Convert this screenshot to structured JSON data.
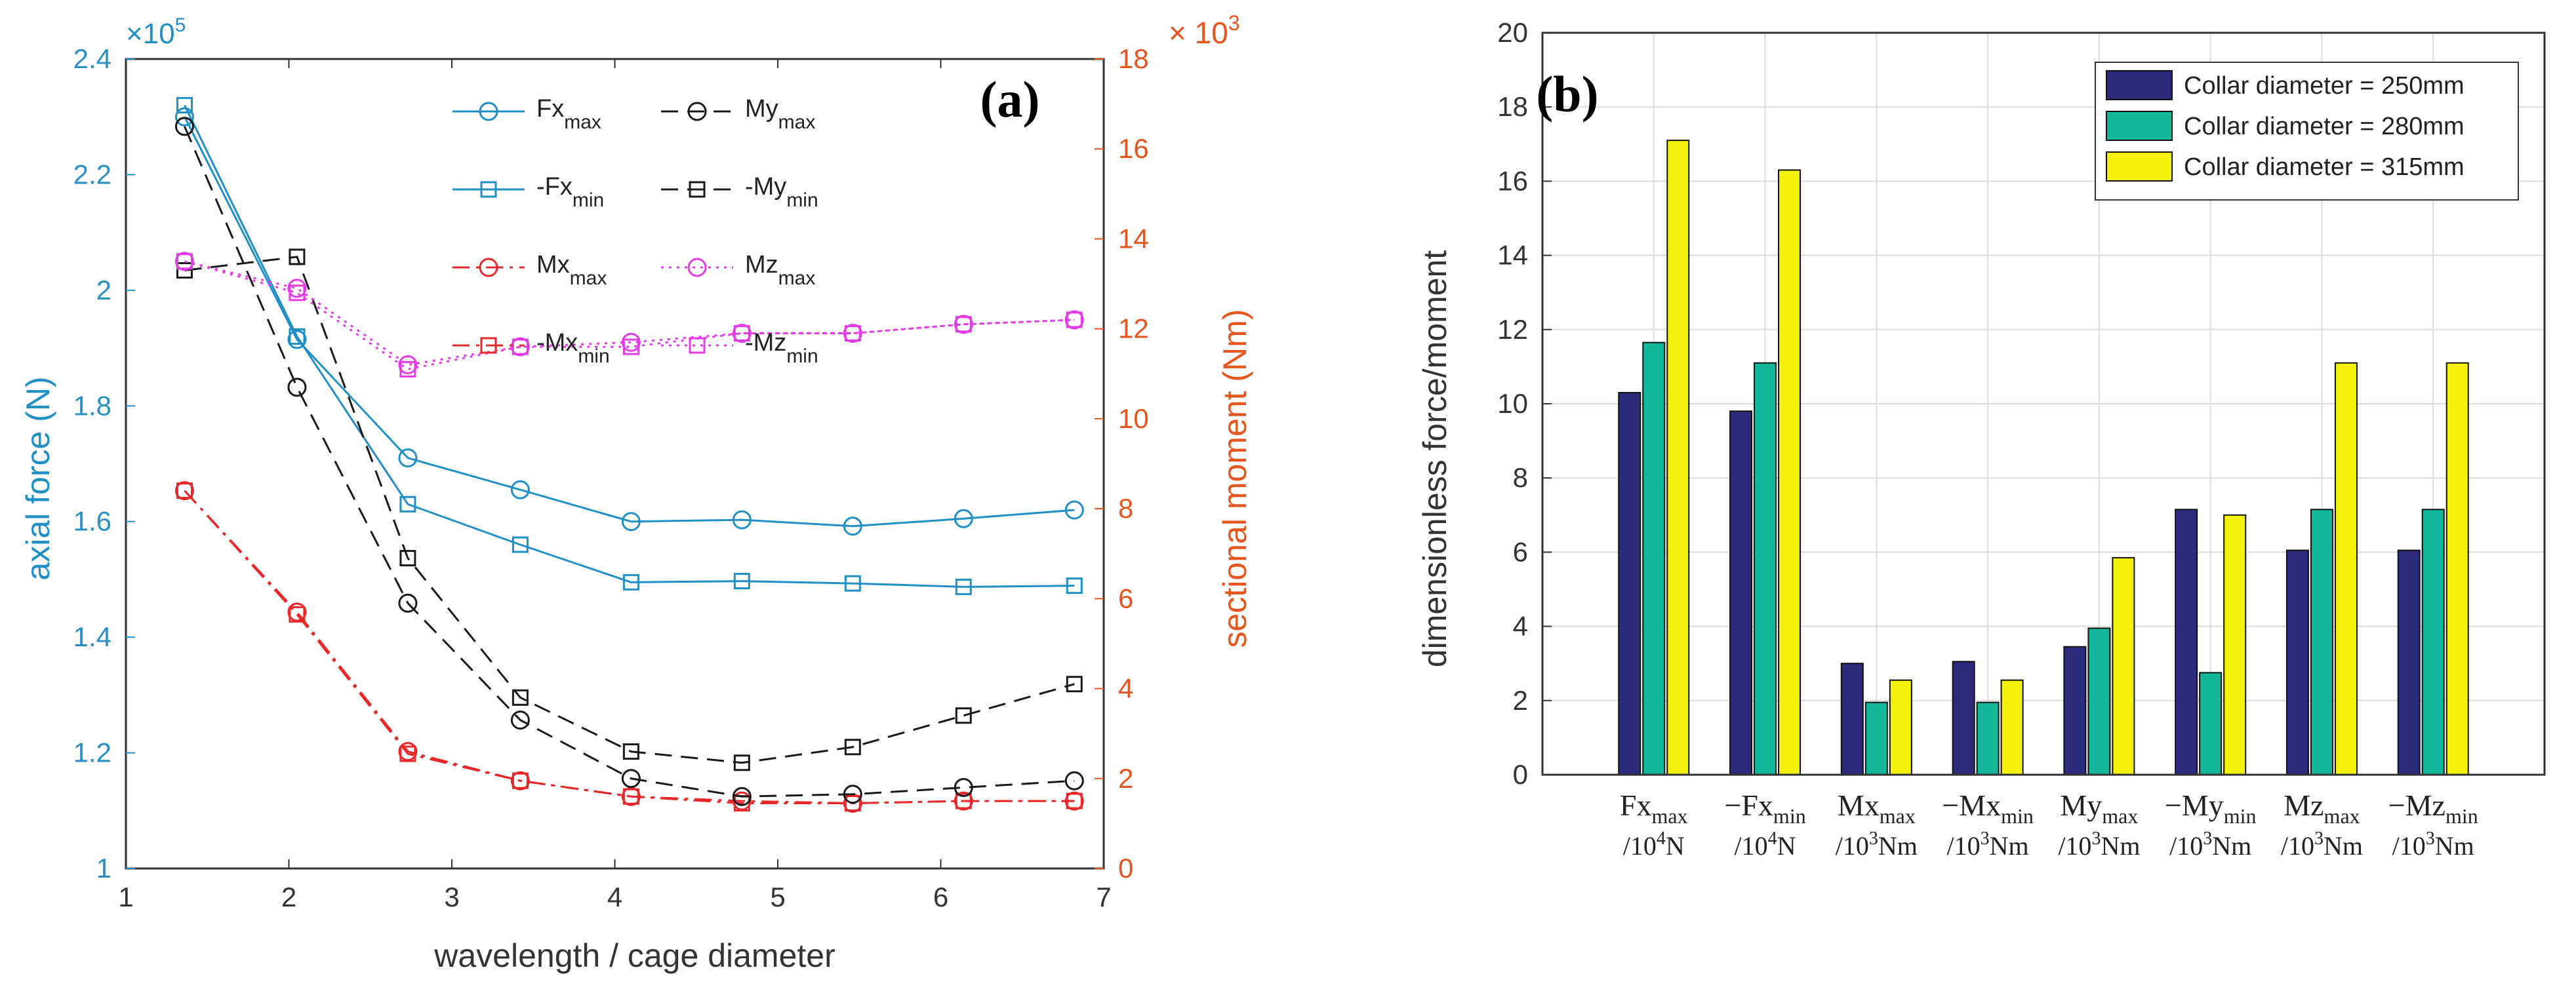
{
  "chart_data": [
    {
      "id": "a",
      "type": "line",
      "panel_label": "(a)",
      "xlabel": "wavelength / cage diameter",
      "ylabel_left": "axial force (N)",
      "ylabel_right": "sectional moment (Nm)",
      "left_multiplier_base": "×10",
      "left_multiplier_exp": "5",
      "right_multiplier_base": "× 10",
      "right_multiplier_exp": "3",
      "xlim": [
        1,
        7
      ],
      "ylim_left": [
        1,
        2.4
      ],
      "ylim_right": [
        0,
        18
      ],
      "x_ticks": [
        1,
        2,
        3,
        4,
        5,
        6,
        7
      ],
      "y_left_ticks": [
        1,
        1.2,
        1.4,
        1.6,
        1.8,
        2,
        2.2,
        2.4
      ],
      "y_right_ticks": [
        0,
        2,
        4,
        6,
        8,
        10,
        12,
        14,
        16,
        18
      ],
      "x": [
        1.36,
        2.05,
        2.73,
        3.42,
        4.1,
        4.78,
        5.46,
        6.14,
        6.82
      ],
      "colors": {
        "force": "#1f8fc6",
        "moment_x": "#e8272b",
        "moment_y": "#1a1a1a",
        "moment_z": "#e33be6",
        "right_axis": "#e8541e"
      },
      "series": [
        {
          "name": "Fx",
          "sub": "max",
          "axis": "left",
          "color": "#1f8fc6",
          "marker": "circle",
          "dash": "solid",
          "values": [
            2.3,
            1.915,
            1.71,
            1.655,
            1.6,
            1.603,
            1.592,
            1.605,
            1.62
          ]
        },
        {
          "name": "-Fx",
          "sub": "min",
          "axis": "left",
          "color": "#1f8fc6",
          "marker": "square",
          "dash": "solid",
          "values": [
            2.32,
            1.92,
            1.63,
            1.56,
            1.495,
            1.497,
            1.493,
            1.487,
            1.489
          ]
        },
        {
          "name": "Mx",
          "sub": "max",
          "axis": "right",
          "color": "#e8272b",
          "marker": "circle",
          "dash": "dashdot",
          "values": [
            8.4,
            5.7,
            2.6,
            1.95,
            1.6,
            1.5,
            1.45,
            1.5,
            1.5
          ]
        },
        {
          "name": "-Mx",
          "sub": "min",
          "axis": "right",
          "color": "#e8272b",
          "marker": "square",
          "dash": "dashdot",
          "values": [
            8.4,
            5.65,
            2.55,
            1.95,
            1.6,
            1.45,
            1.45,
            1.5,
            1.5
          ]
        },
        {
          "name": "My",
          "sub": "max",
          "axis": "right",
          "color": "#1a1a1a",
          "marker": "circle",
          "dash": "dash",
          "values": [
            16.5,
            10.7,
            5.9,
            3.3,
            2.0,
            1.6,
            1.65,
            1.8,
            1.95
          ]
        },
        {
          "name": "-My",
          "sub": "min",
          "axis": "right",
          "color": "#1a1a1a",
          "marker": "square",
          "dash": "dash",
          "values": [
            13.3,
            13.6,
            6.9,
            3.8,
            2.6,
            2.35,
            2.7,
            3.4,
            4.1
          ]
        },
        {
          "name": "Mz",
          "sub": "max",
          "axis": "right",
          "color": "#e33be6",
          "marker": "circle",
          "dash": "dot",
          "values": [
            13.5,
            12.9,
            11.2,
            11.6,
            11.7,
            11.9,
            11.9,
            12.1,
            12.2
          ]
        },
        {
          "name": "-Mz",
          "sub": "min",
          "axis": "right",
          "color": "#e33be6",
          "marker": "square",
          "dash": "dot",
          "values": [
            13.5,
            12.8,
            11.1,
            11.6,
            11.6,
            11.9,
            11.9,
            12.1,
            12.2
          ]
        }
      ]
    },
    {
      "id": "b",
      "type": "bar",
      "panel_label": "(b)",
      "ylabel": "dimensionless force/moment",
      "ylim": [
        0,
        20
      ],
      "y_ticks": [
        0,
        2,
        4,
        6,
        8,
        10,
        12,
        14,
        16,
        18,
        20
      ],
      "categories": [
        {
          "main": "Fx",
          "sub": "max",
          "unit": "/10",
          "unit_exp": "4",
          "unit_end": "N"
        },
        {
          "main": "−Fx",
          "sub": "min",
          "unit": "/10",
          "unit_exp": "4",
          "unit_end": "N"
        },
        {
          "main": "Mx",
          "sub": "max",
          "unit": "/10",
          "unit_exp": "3",
          "unit_end": "Nm"
        },
        {
          "main": "−Mx",
          "sub": "min",
          "unit": "/10",
          "unit_exp": "3",
          "unit_end": "Nm"
        },
        {
          "main": "My",
          "sub": "max",
          "unit": "/10",
          "unit_exp": "3",
          "unit_end": "Nm"
        },
        {
          "main": "−My",
          "sub": "min",
          "unit": "/10",
          "unit_exp": "3",
          "unit_end": "Nm"
        },
        {
          "main": "Mz",
          "sub": "max",
          "unit": "/10",
          "unit_exp": "3",
          "unit_end": "Nm"
        },
        {
          "main": "−Mz",
          "sub": "min",
          "unit": "/10",
          "unit_exp": "3",
          "unit_end": "Nm"
        }
      ],
      "series": [
        {
          "name": "Collar diameter = 250mm",
          "color": "#2c2a7c",
          "values": [
            10.3,
            9.8,
            3.0,
            3.05,
            3.45,
            7.15,
            6.05,
            6.05
          ]
        },
        {
          "name": "Collar diameter = 280mm",
          "color": "#13b89a",
          "values": [
            11.65,
            11.1,
            1.95,
            1.95,
            3.95,
            2.75,
            7.15,
            7.15
          ]
        },
        {
          "name": "Collar diameter = 315mm",
          "color": "#f2f20a",
          "values": [
            17.1,
            16.3,
            2.55,
            2.55,
            5.85,
            7.0,
            11.1,
            11.1
          ]
        }
      ],
      "grid": true,
      "legend_position": "top-right"
    }
  ]
}
